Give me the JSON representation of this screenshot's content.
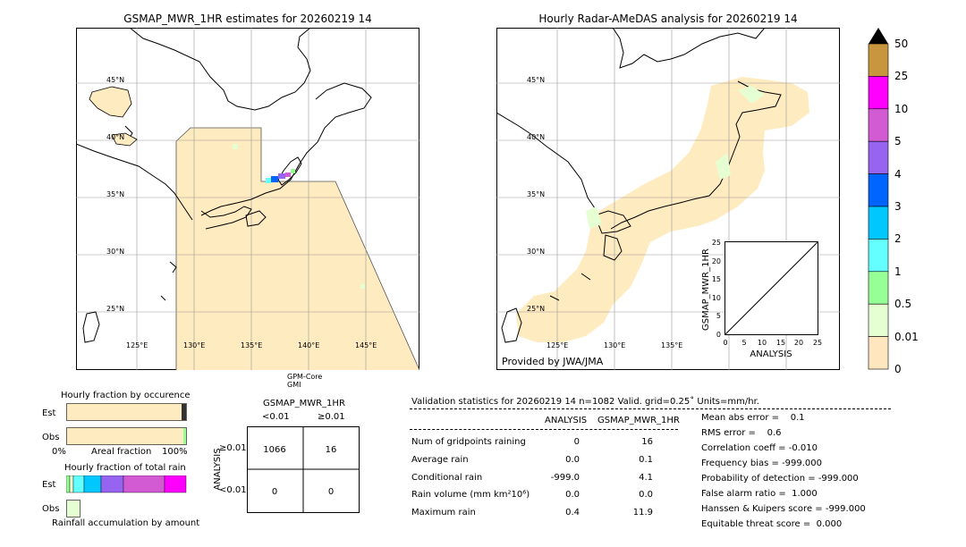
{
  "left_map": {
    "title": "GSMAP_MWR_1HR estimates for 20260219 14",
    "lat_labels": [
      "45°N",
      "40°N",
      "35°N",
      "30°N",
      "25°N"
    ],
    "lon_labels": [
      "125°E",
      "130°E",
      "135°E",
      "140°E",
      "145°E"
    ],
    "satellite_label_1": "GPM-Core",
    "satellite_label_2": "GMI"
  },
  "right_map": {
    "title": "Hourly Radar-AMeDAS analysis for 20260219 14",
    "lat_labels": [
      "45°N",
      "40°N",
      "35°N",
      "30°N",
      "25°N"
    ],
    "lon_labels": [
      "125°E",
      "130°E",
      "135°E"
    ],
    "provider_text": "Provided by JWA/JMA"
  },
  "inset_scatter": {
    "ylabel": "GSMAP_MWR_1HR",
    "xlabel": "ANALYSIS",
    "ticks": [
      "0",
      "5",
      "10",
      "15",
      "20",
      "25"
    ]
  },
  "colorbar": {
    "labels": [
      "50",
      "25",
      "10",
      "5",
      "4",
      "3",
      "2",
      "1",
      "0.5",
      "0.01",
      "0"
    ],
    "colors": [
      "#c8963c",
      "#ff00ff",
      "#d25ad2",
      "#9664f0",
      "#0064ff",
      "#00c8ff",
      "#64ffff",
      "#96ff96",
      "#e6ffd2",
      "#ffe6be"
    ]
  },
  "fraction_panel": {
    "title_occurrence": "Hourly fraction by occurence",
    "row_est": "Est",
    "row_obs": "Obs",
    "axis_left": "0%",
    "axis_mid": "Areal fraction",
    "axis_right": "100%",
    "title_total": "Hourly fraction of total rain",
    "row_est_2": "Est",
    "row_obs_2": "Obs",
    "footer": "Rainfall accumulation by amount"
  },
  "contingency": {
    "title": "GSMAP_MWR_1HR",
    "col_lt": "<0.01",
    "col_ge": "≥0.01",
    "row_axis": "ANALYSIS",
    "row_ge": "≥0.01",
    "row_lt": "<0.01",
    "cells": {
      "a": "1066",
      "b": "16",
      "c": "0",
      "d": "0"
    }
  },
  "validation": {
    "header": "Validation statistics for 20260219 14  n=1082 Valid. grid=0.25˚ Units=mm/hr.",
    "col_analysis": "ANALYSIS",
    "col_gsmap": "GSMAP_MWR_1HR",
    "rows": [
      {
        "label": "Num of gridpoints raining",
        "analysis": "0",
        "gsmap": "16"
      },
      {
        "label": "Average rain",
        "analysis": "0.0",
        "gsmap": "0.1"
      },
      {
        "label": "Conditional rain",
        "analysis": "-999.0",
        "gsmap": "4.1"
      },
      {
        "label": "Rain volume (mm km²10⁶)",
        "analysis": "0.0",
        "gsmap": "0.0"
      },
      {
        "label": "Maximum rain",
        "analysis": "0.4",
        "gsmap": "11.9"
      }
    ],
    "scores": [
      "Mean abs error =    0.1",
      "RMS error =    0.6",
      "Correlation coeff = -0.010",
      "Frequency bias = -999.000",
      "Probability of detection = -999.000",
      "False alarm ratio =  1.000",
      "Hanssen & Kuipers score = -999.000",
      "Equitable threat score =  0.000"
    ]
  }
}
